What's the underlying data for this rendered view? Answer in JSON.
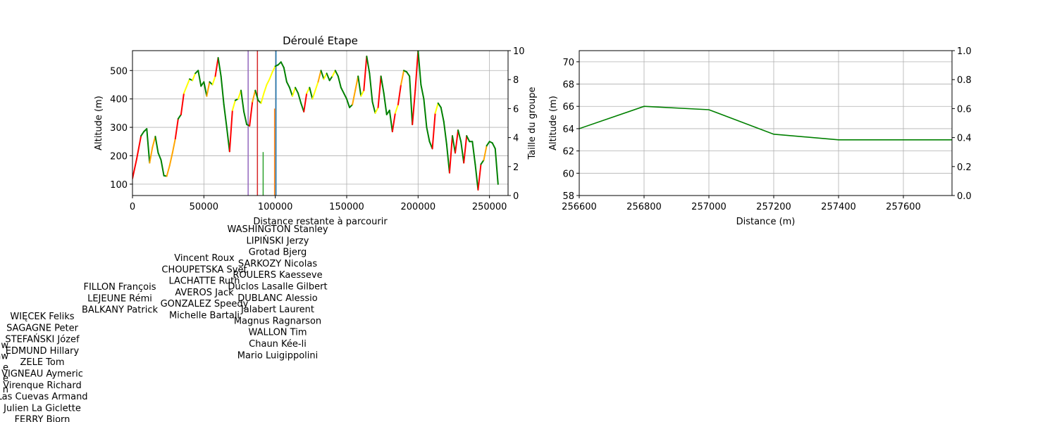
{
  "chart_data": [
    {
      "type": "line",
      "title": "Déroulé Etape",
      "xlabel": "Distance restante à parcourir",
      "ylabel": "Altitude (m)",
      "y2label": "Taille du groupe",
      "xlim": [
        0,
        263000
      ],
      "ylim": [
        60,
        570
      ],
      "y2lim": [
        0,
        10
      ],
      "xticks": [
        0,
        50000,
        100000,
        150000,
        200000,
        250000
      ],
      "xtick_labels": [
        "0",
        "50000",
        "100000",
        "150000",
        "200000",
        "250000"
      ],
      "yticks": [
        100,
        200,
        300,
        400,
        500
      ],
      "y2ticks": [
        0,
        2,
        4,
        6,
        8,
        10
      ],
      "grid": true,
      "profile": {
        "x": [
          0,
          3000,
          6000,
          8000,
          10000,
          12000,
          14000,
          16000,
          18000,
          20000,
          22000,
          24000,
          26000,
          28000,
          30000,
          32000,
          34000,
          36000,
          38000,
          40000,
          42000,
          44000,
          46000,
          48000,
          50000,
          52000,
          54000,
          56000,
          58000,
          60000,
          62000,
          64000,
          66000,
          68000,
          70000,
          72000,
          74000,
          76000,
          78000,
          80000,
          82000,
          84000,
          86000,
          88000,
          90000,
          92000,
          94000,
          96000,
          98000,
          100000,
          102000,
          104000,
          106000,
          108000,
          110000,
          112000,
          114000,
          116000,
          118000,
          120000,
          122000,
          124000,
          126000,
          128000,
          130000,
          132000,
          134000,
          136000,
          138000,
          140000,
          142000,
          144000,
          146000,
          148000,
          150000,
          152000,
          154000,
          156000,
          158000,
          160000,
          162000,
          164000,
          166000,
          168000,
          170000,
          172000,
          174000,
          176000,
          178000,
          180000,
          182000,
          184000,
          186000,
          188000,
          190000,
          192000,
          194000,
          196000,
          198000,
          200000,
          202000,
          204000,
          206000,
          208000,
          210000,
          212000,
          214000,
          216000,
          218000,
          220000,
          222000,
          224000,
          226000,
          228000,
          230000,
          232000,
          234000,
          236000,
          238000,
          240000,
          242000,
          244000,
          246000,
          248000,
          250000,
          252000,
          254000,
          256000
        ],
        "y": [
          120,
          190,
          270,
          285,
          295,
          175,
          230,
          268,
          210,
          185,
          130,
          128,
          165,
          210,
          260,
          330,
          345,
          420,
          445,
          470,
          465,
          490,
          500,
          445,
          460,
          410,
          460,
          450,
          480,
          545,
          480,
          380,
          300,
          215,
          360,
          395,
          400,
          430,
          355,
          310,
          305,
          390,
          430,
          395,
          385,
          420,
          450,
          470,
          495,
          515,
          520,
          530,
          510,
          460,
          440,
          410,
          440,
          420,
          385,
          355,
          420,
          440,
          400,
          430,
          460,
          500,
          470,
          490,
          465,
          480,
          500,
          480,
          440,
          420,
          400,
          370,
          380,
          430,
          480,
          410,
          430,
          550,
          490,
          390,
          350,
          370,
          480,
          420,
          345,
          360,
          285,
          350,
          380,
          450,
          500,
          495,
          480,
          310,
          430,
          570,
          450,
          400,
          300,
          250,
          225,
          350,
          385,
          370,
          320,
          240,
          140,
          270,
          210,
          290,
          250,
          175,
          270,
          250,
          250,
          170,
          80,
          170,
          185,
          235,
          250,
          245,
          225,
          100
        ],
        "color": "#008000",
        "highlight_colors": [
          "#ffff00",
          "#ffa500",
          "#ff0000"
        ]
      },
      "group_markers": [
        {
          "x": 81000,
          "height": 10,
          "color": "#9467bd"
        },
        {
          "x": 87500,
          "height": 10,
          "color": "#d62728"
        },
        {
          "x": 91500,
          "height": 3,
          "color": "#2ca02c"
        },
        {
          "x": 99500,
          "height": 6,
          "color": "#ff7f0e"
        },
        {
          "x": 100500,
          "height": 10,
          "color": "#1f77b4"
        }
      ]
    },
    {
      "type": "line",
      "title": "",
      "xlabel": "Distance (m)",
      "ylabel": "Altitude (m)",
      "xlim": [
        256600,
        257750
      ],
      "ylim": [
        58,
        71
      ],
      "y2lim": [
        0,
        1
      ],
      "xticks": [
        256600,
        256800,
        257000,
        257200,
        257400,
        257600
      ],
      "xtick_labels": [
        "256600",
        "256800",
        "257000",
        "257200",
        "257400",
        "257600"
      ],
      "yticks": [
        58,
        60,
        62,
        64,
        66,
        68,
        70
      ],
      "y2ticks": [
        0.0,
        0.2,
        0.4,
        0.6,
        0.8,
        1.0
      ],
      "y2tick_labels": [
        "0.0",
        "0.2",
        "0.4",
        "0.6",
        "0.8",
        "1.0"
      ],
      "grid": true,
      "x": [
        256600,
        256800,
        257000,
        257200,
        257400,
        257600,
        257750
      ],
      "y": [
        64.0,
        66.0,
        65.7,
        63.5,
        63.0,
        63.0,
        63.0
      ],
      "color": "#008000"
    }
  ],
  "rider_groups": [
    {
      "riders": [
        "WASHINGTON Stanley",
        "LIPIŃSKI Jerzy",
        "Grotad Bjerg",
        "SARKOZY Nicolas",
        "ROULERS Kaesseve",
        "Duclos Lasalle Gilbert",
        "DUBLANC Alessio",
        "Jalabert Laurent",
        "Magnus Ragnarson",
        "WALLON Tim",
        "Chaun Kée-li",
        "Mario Luigippolini"
      ]
    },
    {
      "riders": [
        "Vincent Roux",
        "CHOUPETSKA Svet",
        "LACHATTE Ruth",
        "AVEROS Jack",
        "GONZALEZ Speedy",
        "Michelle Bartali"
      ]
    },
    {
      "riders": [
        "FILLON François",
        "LEJEUNE Rémi",
        "BALKANY Patrick"
      ]
    },
    {
      "riders": [
        "WIĘCEK Feliks",
        "SAGAGNE Peter",
        "STEFAŃSKI Józef",
        "EDMUND Hillary",
        "ZELE Tom",
        "VIGNEAU Aymeric",
        "Virenque Richard",
        "Las Cuevas Armand",
        "Julien La Giclette",
        "FERRY Bjorn"
      ]
    },
    {
      "riders": [
        "w",
        "aw",
        "e",
        "e",
        "n"
      ]
    }
  ]
}
